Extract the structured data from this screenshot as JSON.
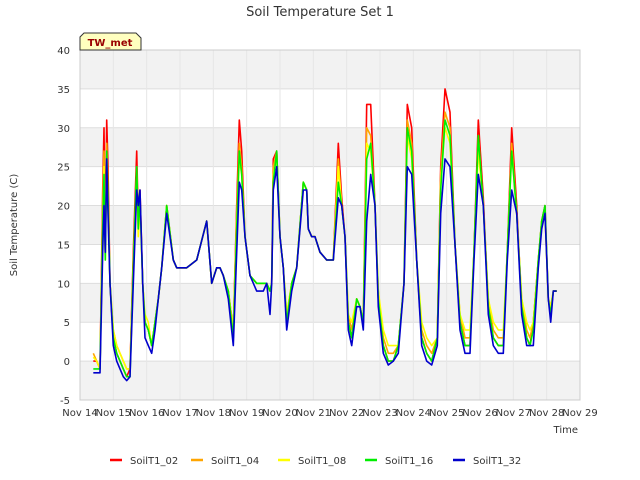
{
  "chart_data": {
    "type": "line",
    "title": "Soil Temperature Set 1",
    "xlabel": "Time",
    "ylabel": "Soil Temperature (C)",
    "station_label": "TW_met",
    "xlim": [
      14,
      29
    ],
    "ylim": [
      -5,
      40
    ],
    "x_ticks": [
      14,
      15,
      16,
      17,
      18,
      19,
      20,
      21,
      22,
      23,
      24,
      25,
      26,
      27,
      28,
      29
    ],
    "x_tick_labels": [
      "Nov 14",
      "Nov 15",
      "Nov 16",
      "Nov 17",
      "Nov 18",
      "Nov 19",
      "Nov 20",
      "Nov 21",
      "Nov 22",
      "Nov 23",
      "Nov 24",
      "Nov 25",
      "Nov 26",
      "Nov 27",
      "Nov 28",
      "Nov 29"
    ],
    "y_ticks": [
      -5,
      0,
      5,
      10,
      15,
      20,
      25,
      30,
      35,
      40
    ],
    "y_tick_labels": [
      "-5",
      "0",
      "5",
      "10",
      "15",
      "20",
      "25",
      "30",
      "35",
      "40"
    ],
    "grid": true,
    "legend_position": "bottom",
    "series": [
      {
        "name": "SoilT1_02",
        "color": "#ff0000"
      },
      {
        "name": "SoilT1_04",
        "color": "#ffa500"
      },
      {
        "name": "SoilT1_08",
        "color": "#ffff00"
      },
      {
        "name": "SoilT1_16",
        "color": "#00ee00"
      },
      {
        "name": "SoilT1_32",
        "color": "#0000cc"
      }
    ],
    "x": [
      14.4,
      14.5,
      14.6,
      14.68,
      14.72,
      14.76,
      14.8,
      14.84,
      14.9,
      15.0,
      15.1,
      15.2,
      15.3,
      15.4,
      15.5,
      15.6,
      15.7,
      15.75,
      15.8,
      15.88,
      15.95,
      16.05,
      16.15,
      16.25,
      16.35,
      16.45,
      16.6,
      16.8,
      16.9,
      16.95,
      17.05,
      17.2,
      17.5,
      17.8,
      17.95,
      18.1,
      18.2,
      18.3,
      18.45,
      18.6,
      18.7,
      18.78,
      18.85,
      18.95,
      19.1,
      19.3,
      19.5,
      19.6,
      19.7,
      19.75,
      19.8,
      19.9,
      20.0,
      20.1,
      20.2,
      20.35,
      20.5,
      20.7,
      20.8,
      20.85,
      20.95,
      21.05,
      21.2,
      21.4,
      21.6,
      21.75,
      21.85,
      21.95,
      22.05,
      22.15,
      22.3,
      22.4,
      22.5,
      22.6,
      22.72,
      22.85,
      22.95,
      23.1,
      23.25,
      23.4,
      23.55,
      23.72,
      23.82,
      23.95,
      24.1,
      24.25,
      24.4,
      24.55,
      24.72,
      24.82,
      24.95,
      25.1,
      25.25,
      25.4,
      25.55,
      25.7,
      25.82,
      25.95,
      26.1,
      26.25,
      26.4,
      26.55,
      26.7,
      26.82,
      26.95,
      27.1,
      27.25,
      27.4,
      27.5,
      27.6,
      27.75,
      27.85,
      27.95,
      28.05,
      28.12,
      28.2,
      28.3
    ],
    "values": [
      [
        0,
        0,
        -1,
        22,
        30,
        15,
        31,
        25,
        10,
        3,
        1,
        0,
        -1,
        -2,
        -1,
        14,
        27,
        18,
        22,
        10,
        5,
        4,
        2,
        5,
        8,
        12,
        20,
        13,
        12,
        12,
        12,
        12,
        13,
        18,
        10,
        12,
        12,
        11,
        9,
        4,
        20,
        31,
        27,
        16,
        11,
        10,
        10,
        10,
        9,
        10,
        26,
        27,
        16,
        12,
        5,
        10,
        12,
        23,
        22,
        17,
        16,
        16,
        14,
        13,
        13,
        28,
        21,
        16,
        5,
        3,
        8,
        7,
        5,
        33,
        33,
        20,
        8,
        2,
        0,
        0,
        2,
        10,
        33,
        30,
        13,
        3,
        1,
        0,
        3,
        25,
        35,
        32,
        15,
        5,
        2,
        2,
        14,
        31,
        21,
        7,
        3,
        2,
        2,
        14,
        30,
        20,
        7,
        3,
        2,
        5,
        13,
        18,
        20,
        8,
        6,
        9,
        9
      ],
      [
        1,
        0,
        -1,
        20,
        27,
        14,
        28,
        22,
        10,
        4,
        2,
        1,
        0,
        -1,
        -1,
        13,
        25,
        17,
        21,
        10,
        5,
        4,
        2,
        5,
        8,
        12,
        20,
        13,
        12,
        12,
        12,
        12,
        13,
        18,
        10,
        12,
        12,
        11,
        9,
        4,
        19,
        28,
        25,
        16,
        11,
        10,
        10,
        10,
        9,
        10,
        25,
        27,
        16,
        12,
        6,
        10,
        12,
        23,
        22,
        17,
        16,
        16,
        14,
        13,
        13,
        26,
        20,
        16,
        6,
        4,
        8,
        7,
        5,
        30,
        29,
        20,
        9,
        3,
        1,
        1,
        2,
        10,
        31,
        28,
        13,
        4,
        2,
        1,
        3,
        24,
        32,
        30,
        15,
        6,
        3,
        3,
        14,
        29,
        20,
        8,
        4,
        3,
        3,
        14,
        28,
        19,
        8,
        4,
        3,
        5,
        13,
        18,
        19,
        8,
        7,
        9,
        9
      ],
      [
        0.5,
        0,
        -1,
        18,
        25,
        13,
        26,
        20,
        10,
        4,
        2,
        1,
        0,
        -1,
        -1,
        12,
        24,
        16,
        20,
        10,
        6,
        5,
        2,
        5,
        8,
        12,
        20,
        13,
        12,
        12,
        12,
        12,
        13,
        18,
        10,
        12,
        12,
        11,
        9,
        4,
        18,
        26,
        24,
        16,
        11,
        10,
        10,
        10,
        9,
        10,
        24,
        26,
        16,
        12,
        6,
        10,
        12,
        23,
        22,
        17,
        16,
        16,
        14,
        13,
        13,
        25,
        20,
        16,
        6,
        5,
        8,
        7,
        5,
        28,
        27,
        20,
        9,
        4,
        2,
        2,
        2,
        10,
        29,
        26,
        13,
        5,
        3,
        2,
        3,
        23,
        30,
        28,
        15,
        6,
        4,
        4,
        14,
        27,
        20,
        8,
        5,
        4,
        4,
        14,
        27,
        19,
        8,
        5,
        4,
        5,
        13,
        18,
        19,
        8,
        7,
        9,
        9
      ],
      [
        -1,
        -1,
        -1,
        17,
        24,
        13,
        27,
        21,
        10,
        3,
        1,
        0,
        -1,
        -2,
        -2,
        12,
        25,
        17,
        21,
        10,
        5,
        4,
        2,
        5,
        8,
        12,
        20,
        13,
        12,
        12,
        12,
        12,
        13,
        18,
        10,
        12,
        12,
        11,
        9,
        3,
        17,
        27,
        24,
        16,
        11,
        10,
        10,
        10,
        9,
        10,
        23,
        27,
        16,
        12,
        5,
        10,
        12,
        23,
        22,
        17,
        16,
        16,
        14,
        13,
        13,
        23,
        20,
        16,
        5,
        3,
        8,
        7,
        5,
        26,
        28,
        20,
        8,
        2,
        0,
        0,
        2,
        10,
        30,
        27,
        13,
        3,
        1,
        0,
        3,
        22,
        31,
        29,
        15,
        5,
        2,
        2,
        14,
        29,
        20,
        7,
        3,
        2,
        2,
        14,
        27,
        19,
        7,
        3,
        2,
        4,
        13,
        18,
        20,
        8,
        6,
        9,
        9
      ],
      [
        -1.5,
        -1.5,
        -1.5,
        14,
        20,
        14,
        26,
        19,
        10,
        2,
        0,
        -1,
        -2,
        -2.5,
        -2,
        10,
        22,
        20,
        22,
        10,
        3,
        2,
        1,
        4,
        8,
        12,
        19,
        13,
        12,
        12,
        12,
        12,
        13,
        18,
        10,
        12,
        12,
        11,
        8,
        2,
        14,
        23,
        22,
        16,
        11,
        9,
        9,
        10,
        6,
        10,
        22,
        25,
        16,
        12,
        4,
        9,
        12,
        22,
        22,
        17,
        16,
        16,
        14,
        13,
        13,
        21,
        20,
        16,
        4,
        2,
        7,
        7,
        4,
        18,
        24,
        20,
        7,
        1,
        -0.5,
        0,
        1,
        10,
        25,
        24,
        13,
        2,
        0,
        -0.5,
        2,
        19,
        26,
        25,
        15,
        4,
        1,
        1,
        13,
        24,
        20,
        6,
        2,
        1,
        1,
        13,
        22,
        19,
        6,
        2,
        2,
        2,
        12,
        17,
        19,
        8,
        5,
        9,
        9
      ]
    ]
  }
}
